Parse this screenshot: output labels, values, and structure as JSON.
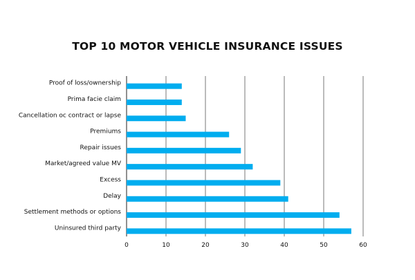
{
  "chart_data": {
    "type": "bar",
    "orientation": "horizontal",
    "title": "TOP 10 MOTOR VEHICLE INSURANCE ISSUES",
    "xlabel": "",
    "ylabel": "",
    "categories": [
      "Proof of loss/ownership",
      "Prima facie claim",
      "Cancellation oc contract or lapse",
      "Premiums",
      "Repair issues",
      "Market/agreed value MV",
      "Excess",
      "Delay",
      "Settlement methods or options",
      "Uninsured third party"
    ],
    "values": [
      14,
      14,
      15,
      26,
      29,
      32,
      39,
      41,
      54,
      57
    ],
    "xlim": [
      0,
      60
    ],
    "xticks": [
      "0",
      "10",
      "20",
      "30",
      "40",
      "50",
      "60"
    ],
    "grid": "vertical",
    "bar_color": "#00adef"
  }
}
